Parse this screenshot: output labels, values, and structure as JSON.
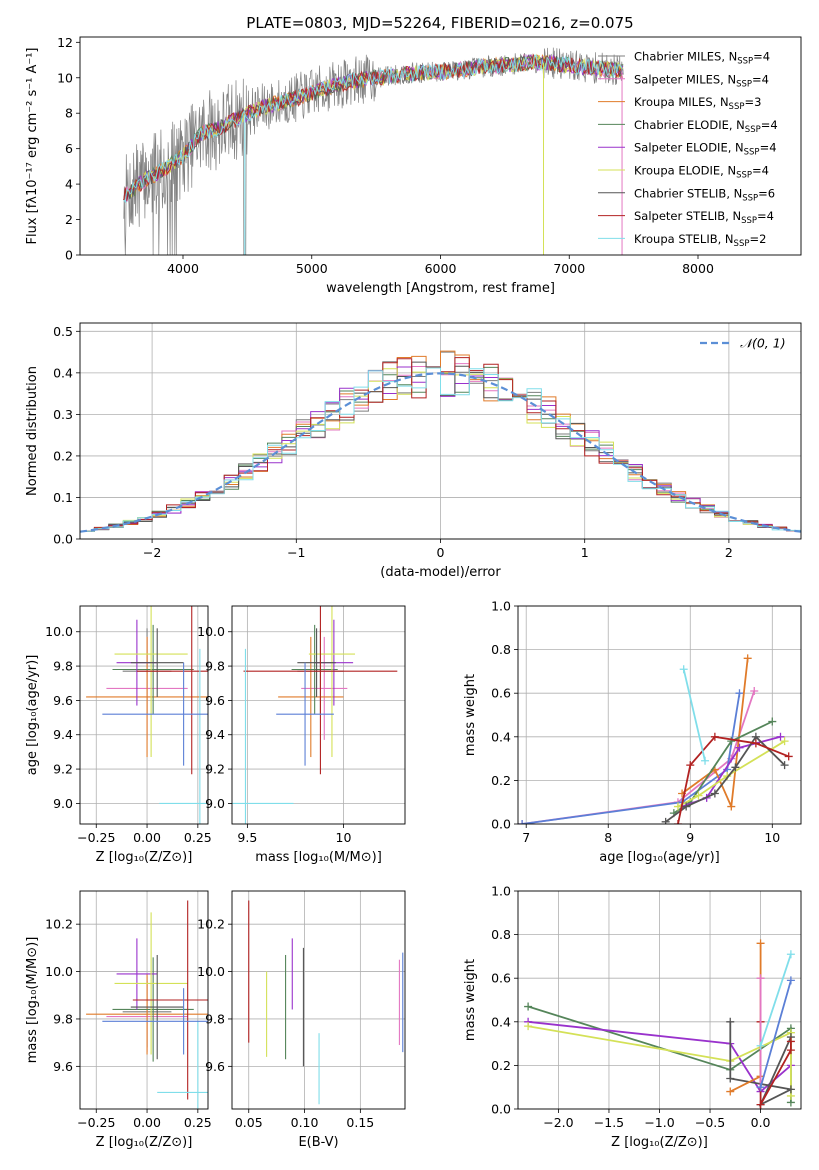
{
  "title": "PLATE=0803, MJD=52264, FIBERID=0216, z=0.075",
  "colors": {
    "chabrier_miles": "#7f7f7f",
    "salpeter_miles": "#e377c2",
    "kroupa_miles": "#e07b2a",
    "chabrier_elodie": "#55855a",
    "salpeter_elodie": "#9932cc",
    "kroupa_elodie": "#d4e157",
    "chabrier_stelib": "#555555",
    "salpeter_stelib": "#b22222",
    "kroupa_stelib": "#80deea",
    "extra_blue": "#5b7fd6",
    "gaussian": "#5b8fd6"
  },
  "chart_data": [
    {
      "id": "spectrum",
      "type": "line",
      "xlabel": "wavelength [Angstrom, rest frame]",
      "ylabel": "Flux [fλ10⁻¹⁷ erg cm⁻² s⁻¹ A⁻¹]",
      "xlim": [
        3200,
        8800
      ],
      "ylim": [
        0,
        12.3
      ],
      "xticks": [
        4000,
        5000,
        6000,
        7000,
        8000
      ],
      "yticks": [
        0,
        2,
        4,
        6,
        8,
        10,
        12
      ],
      "grid": false,
      "legend_position": "top-right",
      "continuum": [
        [
          3540,
          3.3
        ],
        [
          3700,
          4.2
        ],
        [
          3850,
          4.8
        ],
        [
          4000,
          5.6
        ],
        [
          4150,
          6.9
        ],
        [
          4300,
          7.2
        ],
        [
          4500,
          8.0
        ],
        [
          4700,
          8.5
        ],
        [
          4900,
          8.9
        ],
        [
          5100,
          9.4
        ],
        [
          5300,
          9.8
        ],
        [
          5500,
          10.0
        ],
        [
          5700,
          10.2
        ],
        [
          5900,
          10.3
        ],
        [
          6100,
          10.4
        ],
        [
          6300,
          10.6
        ],
        [
          6500,
          10.7
        ],
        [
          6700,
          10.9
        ],
        [
          6900,
          10.8
        ],
        [
          7100,
          10.6
        ],
        [
          7300,
          10.5
        ],
        [
          7420,
          10.4
        ]
      ],
      "legend": [
        {
          "key": "chabrier_miles",
          "label": "Chabrier MILES, N",
          "sub": "SSP",
          "tail": "=4"
        },
        {
          "key": "salpeter_miles",
          "label": "Salpeter MILES, N",
          "sub": "SSP",
          "tail": "=4"
        },
        {
          "key": "kroupa_miles",
          "label": "Kroupa MILES, N",
          "sub": "SSP",
          "tail": "=3"
        },
        {
          "key": "chabrier_elodie",
          "label": "Chabrier ELODIE, N",
          "sub": "SSP",
          "tail": "=4"
        },
        {
          "key": "salpeter_elodie",
          "label": "Salpeter ELODIE, N",
          "sub": "SSP",
          "tail": "=4"
        },
        {
          "key": "kroupa_elodie",
          "label": "Kroupa ELODIE, N",
          "sub": "SSP",
          "tail": "=4"
        },
        {
          "key": "chabrier_stelib",
          "label": "Chabrier STELIB, N",
          "sub": "SSP",
          "tail": "=6"
        },
        {
          "key": "salpeter_stelib",
          "label": "Salpeter STELIB, N",
          "sub": "SSP",
          "tail": "=4"
        },
        {
          "key": "kroupa_stelib",
          "label": "Kroupa STELIB, N",
          "sub": "SSP",
          "tail": "=2"
        }
      ]
    },
    {
      "id": "residuals",
      "type": "line",
      "xlabel": "(data-model)/error",
      "ylabel": "Normed distribution",
      "xlim": [
        -2.5,
        2.5
      ],
      "ylim": [
        0,
        0.52
      ],
      "xticks": [
        -2,
        -1,
        0,
        1,
        2
      ],
      "yticks": [
        0.0,
        0.1,
        0.2,
        0.3,
        0.4,
        0.5
      ],
      "grid": true,
      "legend_position": "top-right",
      "legend_label": "𝒩(0, 1)",
      "bin_width": 0.1
    },
    {
      "id": "age_vs_Z",
      "type": "scatter",
      "xlabel": "Z [log₁₀(Z/Z⊙)]",
      "ylabel": "age  [log₁₀(age/yr)]",
      "xlim": [
        -0.33,
        0.3
      ],
      "ylim": [
        8.88,
        10.15
      ],
      "xticks": [
        -0.25,
        0.0,
        0.25
      ],
      "xticklabels": [
        "−0.25",
        "0.00",
        "0.25"
      ],
      "yticks": [
        9.0,
        9.2,
        9.4,
        9.6,
        9.8,
        10.0
      ],
      "grid": true,
      "points": [
        {
          "key": "chabrier_miles",
          "x": 0.0,
          "xerr": 0.12,
          "y": 9.77,
          "yerr": 0.25
        },
        {
          "key": "salpeter_miles",
          "x": 0.0,
          "xerr": 0.2,
          "y": 9.67,
          "yerr": 0.3
        },
        {
          "key": "kroupa_miles",
          "x": 0.0,
          "xerr": 0.3,
          "y": 9.62,
          "yerr": 0.35
        },
        {
          "key": "chabrier_elodie",
          "x": 0.03,
          "xerr": 0.2,
          "y": 9.78,
          "yerr": 0.26
        },
        {
          "key": "salpeter_elodie",
          "x": -0.05,
          "xerr": 0.1,
          "y": 9.82,
          "yerr": 0.25
        },
        {
          "key": "kroupa_elodie",
          "x": 0.02,
          "xerr": 0.18,
          "y": 9.87,
          "yerr": 0.6
        },
        {
          "key": "chabrier_stelib",
          "x": 0.05,
          "xerr": 0.13,
          "y": 9.82,
          "yerr": 0.2
        },
        {
          "key": "salpeter_stelib",
          "x": 0.22,
          "xerr": 0.27,
          "y": 9.77,
          "yerr": 0.6
        },
        {
          "key": "kroupa_stelib",
          "x": 0.26,
          "xerr": 0.2,
          "y": 9.0,
          "yerr": 0.9
        },
        {
          "key": "extra_blue",
          "x": 0.18,
          "xerr": 0.4,
          "y": 9.52,
          "yerr": 0.3
        }
      ]
    },
    {
      "id": "age_vs_mass",
      "type": "scatter",
      "xlabel": "mass [log₁₀(M/M⊙)]",
      "xlim": [
        9.42,
        10.32
      ],
      "ylim": [
        8.88,
        10.15
      ],
      "xticks": [
        9.5,
        10.0
      ],
      "yticks": [
        9.0,
        9.2,
        9.4,
        9.6,
        9.8,
        10.0
      ],
      "grid": true,
      "points": [
        {
          "key": "chabrier_miles",
          "x": 9.88,
          "xerr": 0.12,
          "y": 9.77,
          "yerr": 0.25
        },
        {
          "key": "salpeter_miles",
          "x": 9.9,
          "xerr": 0.12,
          "y": 9.67,
          "yerr": 0.3
        },
        {
          "key": "kroupa_miles",
          "x": 9.83,
          "xerr": 0.17,
          "y": 9.62,
          "yerr": 0.35
        },
        {
          "key": "chabrier_elodie",
          "x": 9.85,
          "xerr": 0.12,
          "y": 9.78,
          "yerr": 0.26
        },
        {
          "key": "salpeter_elodie",
          "x": 9.95,
          "xerr": 0.1,
          "y": 9.82,
          "yerr": 0.25
        },
        {
          "key": "kroupa_elodie",
          "x": 9.94,
          "xerr": 0.12,
          "y": 9.87,
          "yerr": 0.6
        },
        {
          "key": "chabrier_stelib",
          "x": 9.86,
          "xerr": 0.1,
          "y": 9.82,
          "yerr": 0.2
        },
        {
          "key": "salpeter_stelib",
          "x": 9.88,
          "xerr": 0.4,
          "y": 9.77,
          "yerr": 0.6
        },
        {
          "key": "kroupa_stelib",
          "x": 9.49,
          "xerr": 0.25,
          "y": 9.0,
          "yerr": 0.9
        },
        {
          "key": "extra_blue",
          "x": 9.8,
          "xerr": 0.15,
          "y": 9.52,
          "yerr": 0.3
        }
      ]
    },
    {
      "id": "weight_vs_age",
      "type": "line",
      "xlabel": "age  [log₁₀(age/yr)]",
      "ylabel": "mass weight",
      "xlim": [
        6.9,
        10.35
      ],
      "ylim": [
        0,
        1.0
      ],
      "xticks": [
        7,
        8,
        9,
        10
      ],
      "yticks": [
        0.0,
        0.2,
        0.4,
        0.6,
        0.8,
        1.0
      ],
      "grid": true,
      "series": [
        {
          "key": "salpeter_miles",
          "x": [
            6.95,
            8.85,
            9.5,
            9.78
          ],
          "y": [
            0.0,
            0.1,
            0.3,
            0.61
          ]
        },
        {
          "key": "extra_blue",
          "x": [
            6.95,
            8.9,
            9.45,
            9.6
          ],
          "y": [
            0.0,
            0.1,
            0.25,
            0.6
          ]
        },
        {
          "key": "kroupa_miles",
          "x": [
            8.9,
            9.3,
            9.5,
            9.7
          ],
          "y": [
            0.14,
            0.25,
            0.08,
            0.76
          ]
        },
        {
          "key": "chabrier_elodie",
          "x": [
            8.8,
            9.0,
            9.5,
            10.0
          ],
          "y": [
            0.05,
            0.1,
            0.38,
            0.47
          ]
        },
        {
          "key": "salpeter_elodie",
          "x": [
            8.9,
            9.2,
            9.6,
            10.1
          ],
          "y": [
            0.08,
            0.12,
            0.35,
            0.4
          ]
        },
        {
          "key": "kroupa_elodie",
          "x": [
            8.85,
            9.1,
            9.45,
            10.15
          ],
          "y": [
            0.08,
            0.13,
            0.22,
            0.38
          ]
        },
        {
          "key": "chabrier_stelib",
          "x": [
            8.7,
            8.95,
            9.3,
            9.55,
            9.8,
            10.15
          ],
          "y": [
            0.01,
            0.08,
            0.14,
            0.26,
            0.4,
            0.27
          ]
        },
        {
          "key": "salpeter_stelib",
          "x": [
            8.85,
            9.0,
            9.3,
            9.8,
            10.2
          ],
          "y": [
            0.0,
            0.27,
            0.4,
            0.37,
            0.31
          ]
        },
        {
          "key": "kroupa_stelib",
          "x": [
            8.92,
            9.18
          ],
          "y": [
            0.71,
            0.29
          ]
        }
      ]
    },
    {
      "id": "mass_vs_Z",
      "type": "scatter",
      "xlabel": "Z [log₁₀(Z/Z⊙)]",
      "ylabel": "mass [log₁₀(M/M⊙)]",
      "xlim": [
        -0.33,
        0.3
      ],
      "ylim": [
        9.42,
        10.34
      ],
      "xticks": [
        -0.25,
        0.0,
        0.25
      ],
      "xticklabels": [
        "−0.25",
        "0.00",
        "0.25"
      ],
      "yticks": [
        9.6,
        9.8,
        10.0,
        10.2
      ],
      "grid": true,
      "points": [
        {
          "key": "chabrier_miles",
          "x": 0.0,
          "xerr": 0.12,
          "y": 9.83,
          "yerr": 0.15
        },
        {
          "key": "salpeter_miles",
          "x": 0.0,
          "xerr": 0.2,
          "y": 9.81,
          "yerr": 0.15
        },
        {
          "key": "kroupa_miles",
          "x": 0.0,
          "xerr": 0.3,
          "y": 9.82,
          "yerr": 0.17
        },
        {
          "key": "chabrier_elodie",
          "x": 0.03,
          "xerr": 0.2,
          "y": 9.84,
          "yerr": 0.22
        },
        {
          "key": "salpeter_elodie",
          "x": -0.05,
          "xerr": 0.1,
          "y": 9.99,
          "yerr": 0.15
        },
        {
          "key": "kroupa_elodie",
          "x": 0.02,
          "xerr": 0.18,
          "y": 9.95,
          "yerr": 0.3
        },
        {
          "key": "chabrier_stelib",
          "x": 0.05,
          "xerr": 0.13,
          "y": 9.85,
          "yerr": 0.22
        },
        {
          "key": "salpeter_stelib",
          "x": 0.2,
          "xerr": 0.27,
          "y": 9.88,
          "yerr": 0.42
        },
        {
          "key": "kroupa_stelib",
          "x": 0.25,
          "xerr": 0.2,
          "y": 9.49,
          "yerr": 0.3
        },
        {
          "key": "extra_blue",
          "x": 0.18,
          "xerr": 0.4,
          "y": 9.79,
          "yerr": 0.14
        }
      ]
    },
    {
      "id": "mass_vs_EBV",
      "type": "scatter",
      "xlabel": "E(B-V)",
      "xlim": [
        0.035,
        0.19
      ],
      "ylim": [
        9.42,
        10.34
      ],
      "xticks": [
        0.05,
        0.1,
        0.15
      ],
      "xticklabels": [
        "0.05",
        "0.10",
        "0.15"
      ],
      "yticks": [
        9.6,
        9.8,
        10.0,
        10.2
      ],
      "grid": true,
      "points": [
        {
          "key": "salpeter_stelib",
          "x": 0.05,
          "xerr": 0,
          "y": 10.0,
          "yerr": 0.3
        },
        {
          "key": "kroupa_elodie",
          "x": 0.066,
          "xerr": 0,
          "y": 9.82,
          "yerr": 0.18
        },
        {
          "key": "chabrier_elodie",
          "x": 0.083,
          "xerr": 0,
          "y": 9.85,
          "yerr": 0.22
        },
        {
          "key": "salpeter_elodie",
          "x": 0.089,
          "xerr": 0,
          "y": 9.99,
          "yerr": 0.15
        },
        {
          "key": "chabrier_stelib",
          "x": 0.099,
          "xerr": 0,
          "y": 9.85,
          "yerr": 0.25
        },
        {
          "key": "kroupa_stelib",
          "x": 0.113,
          "xerr": 0,
          "y": 9.59,
          "yerr": 0.15
        },
        {
          "key": "salpeter_miles",
          "x": 0.185,
          "xerr": 0,
          "y": 9.87,
          "yerr": 0.18
        },
        {
          "key": "extra_blue",
          "x": 0.188,
          "xerr": 0,
          "y": 9.87,
          "yerr": 0.21
        }
      ]
    },
    {
      "id": "weight_vs_Z",
      "type": "line",
      "xlabel": "Z [log₁₀(Z/Z⊙)]",
      "ylabel": "mass weight",
      "xlim": [
        -2.4,
        0.4
      ],
      "ylim": [
        0,
        1.0
      ],
      "xticks": [
        -2.0,
        -1.5,
        -1.0,
        -0.5,
        0.0
      ],
      "xticklabels": [
        "−2.0",
        "−1.5",
        "−1.0",
        "−0.5",
        "0.0"
      ],
      "yticks": [
        0.0,
        0.2,
        0.4,
        0.6,
        0.8,
        1.0
      ],
      "grid": true,
      "series": [
        {
          "key": "chabrier_elodie",
          "x": [
            -2.3,
            -0.3,
            0.3,
            0.3
          ],
          "y": [
            0.47,
            0.18,
            0.37,
            0.03
          ]
        },
        {
          "key": "salpeter_elodie",
          "x": [
            -2.3,
            -0.3,
            0.0,
            0.3
          ],
          "y": [
            0.4,
            0.3,
            0.08,
            0.2
          ]
        },
        {
          "key": "kroupa_elodie",
          "x": [
            -2.3,
            -0.3,
            0.3,
            0.3
          ],
          "y": [
            0.38,
            0.22,
            0.35,
            0.06
          ]
        },
        {
          "key": "chabrier_stelib",
          "x": [
            -0.3,
            -0.3,
            0.3,
            0.0,
            0.3
          ],
          "y": [
            0.4,
            0.14,
            0.09,
            0.02,
            0.33
          ]
        },
        {
          "key": "salpeter_stelib",
          "x": [
            0.0,
            0.0,
            0.3,
            0.3
          ],
          "y": [
            0.4,
            0.02,
            0.27,
            0.31
          ]
        },
        {
          "key": "kroupa_miles",
          "x": [
            -0.3,
            0.0,
            0.0
          ],
          "y": [
            0.08,
            0.15,
            0.76
          ]
        },
        {
          "key": "salpeter_miles",
          "x": [
            0.0,
            0.0
          ],
          "y": [
            0.6,
            0.1
          ]
        },
        {
          "key": "kroupa_stelib",
          "x": [
            0.0,
            0.3
          ],
          "y": [
            0.29,
            0.71
          ]
        },
        {
          "key": "extra_blue",
          "x": [
            0.0,
            0.3
          ],
          "y": [
            0.1,
            0.59
          ]
        }
      ]
    }
  ]
}
